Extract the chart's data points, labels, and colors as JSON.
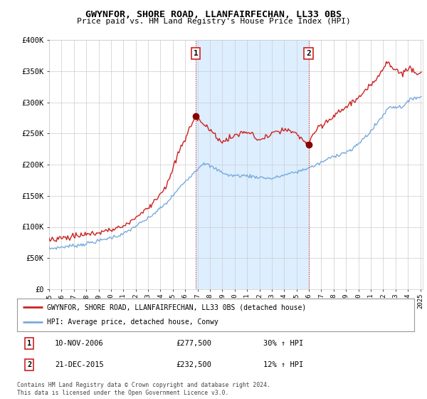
{
  "title": "GWYNFOR, SHORE ROAD, LLANFAIRFECHAN, LL33 0BS",
  "subtitle": "Price paid vs. HM Land Registry's House Price Index (HPI)",
  "red_label": "GWYNFOR, SHORE ROAD, LLANFAIRFECHAN, LL33 0BS (detached house)",
  "blue_label": "HPI: Average price, detached house, Conwy",
  "ylim": [
    0,
    400000
  ],
  "yticks": [
    0,
    50000,
    100000,
    150000,
    200000,
    250000,
    300000,
    350000,
    400000
  ],
  "ytick_labels": [
    "£0",
    "£50K",
    "£100K",
    "£150K",
    "£200K",
    "£250K",
    "£300K",
    "£350K",
    "£400K"
  ],
  "xlim_start": 1995.0,
  "xlim_end": 2025.2,
  "sale1_x": 2006.86,
  "sale1_y": 277500,
  "sale1_label": "1",
  "sale1_date": "10-NOV-2006",
  "sale1_price": "£277,500",
  "sale1_hpi": "30% ↑ HPI",
  "sale2_x": 2015.97,
  "sale2_y": 232500,
  "sale2_label": "2",
  "sale2_date": "21-DEC-2015",
  "sale2_price": "£232,500",
  "sale2_hpi": "12% ↑ HPI",
  "red_color": "#cc2222",
  "blue_color": "#7aabdc",
  "shade_color": "#ddeeff",
  "background_color": "#ffffff",
  "plot_bg_color": "#ffffff",
  "grid_color": "#cccccc",
  "footer": "Contains HM Land Registry data © Crown copyright and database right 2024.\nThis data is licensed under the Open Government Licence v3.0."
}
